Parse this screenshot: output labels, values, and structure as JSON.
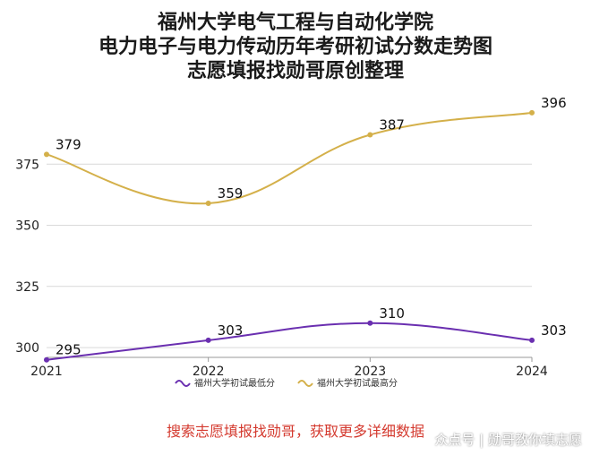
{
  "title_lines": [
    "福州大学电气工程与自动化学院",
    "电力电子与电力传动历年考研初试分数走势图",
    "志愿填报找勋哥原创整理"
  ],
  "footer_note": "搜索志愿填报找勋哥，获取更多详细数据",
  "watermark": "众点号 | 勋哥教你填志愿",
  "colors": {
    "min_series": "#6a2fb0",
    "max_series": "#d4b04a",
    "grid": "#d9d9d9",
    "note": "#d43a2f"
  },
  "chart_data": {
    "type": "line",
    "categories": [
      "2021",
      "2022",
      "2023",
      "2024"
    ],
    "series": [
      {
        "name": "福州大学初试最低分",
        "values": [
          295,
          303,
          310,
          303
        ]
      },
      {
        "name": "福州大学初试最高分",
        "values": [
          379,
          359,
          387,
          396
        ]
      }
    ],
    "y_ticks": [
      300,
      325,
      350,
      375
    ],
    "ylim": [
      296,
      400
    ],
    "smooth": true,
    "legend_position": "bottom-center"
  }
}
